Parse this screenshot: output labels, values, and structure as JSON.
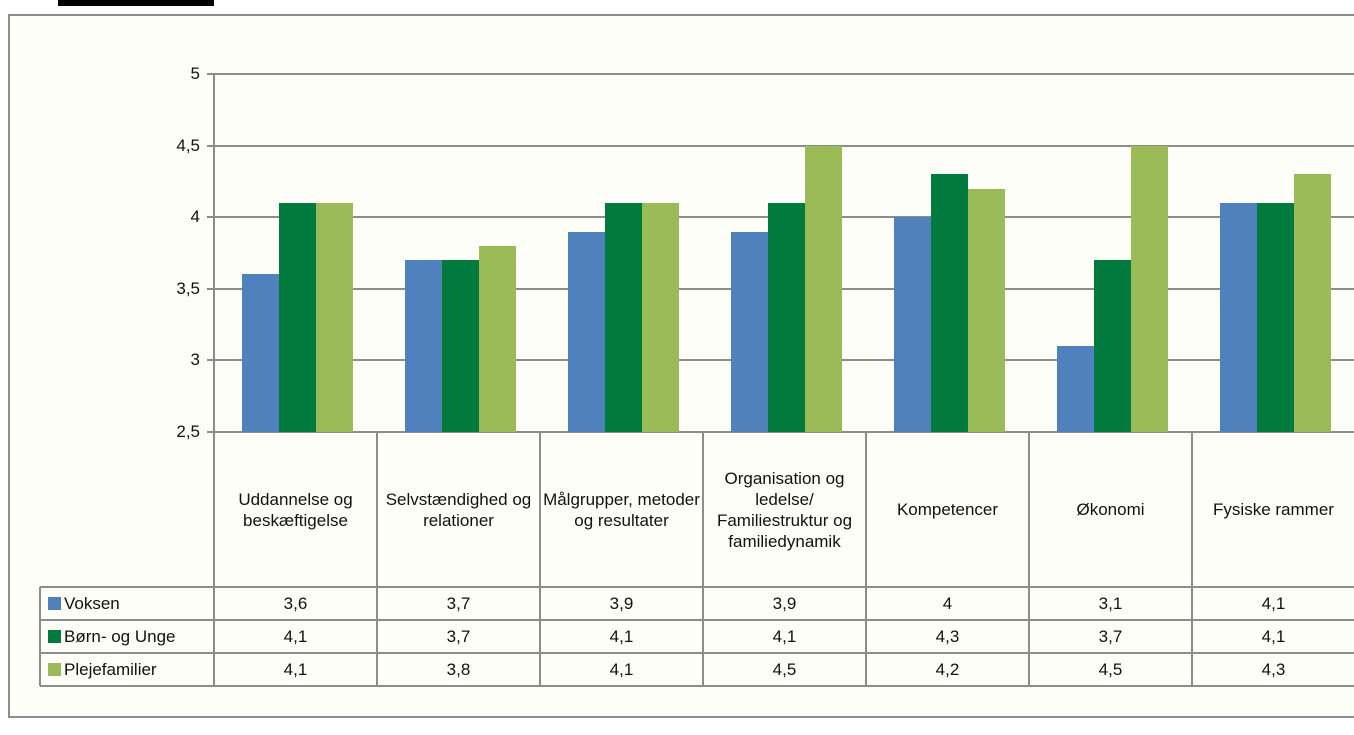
{
  "chart_data": {
    "type": "bar",
    "categories": [
      "Uddannelse og beskæftigelse",
      "Selvstændighed og relationer",
      "Målgrupper, metoder og resultater",
      "Organisation og ledelse/ Familiestruktur og familiedynamik",
      "Kompetencer",
      "Økonomi",
      "Fysiske rammer"
    ],
    "series": [
      {
        "name": "Voksen",
        "color": "#4f81bd",
        "values": [
          3.6,
          3.7,
          3.9,
          3.9,
          4,
          3.1,
          4.1
        ],
        "value_labels": [
          "3,6",
          "3,7",
          "3,9",
          "3,9",
          "4",
          "3,1",
          "4,1"
        ]
      },
      {
        "name": "Børn- og Unge",
        "color": "#007a3d",
        "values": [
          4.1,
          3.7,
          4.1,
          4.1,
          4.3,
          3.7,
          4.1
        ],
        "value_labels": [
          "4,1",
          "3,7",
          "4,1",
          "4,1",
          "4,3",
          "3,7",
          "4,1"
        ]
      },
      {
        "name": "Plejefamilier",
        "color": "#9bbb59",
        "values": [
          4.1,
          3.8,
          4.1,
          4.5,
          4.2,
          4.5,
          4.3
        ],
        "value_labels": [
          "4,1",
          "3,8",
          "4,1",
          "4,5",
          "4,2",
          "4,5",
          "4,3"
        ]
      }
    ],
    "ylim": [
      2.5,
      5
    ],
    "yticks": [
      {
        "value": 2.5,
        "label": "2,5"
      },
      3,
      {
        "value": 3.5,
        "label": "3,5"
      },
      4,
      {
        "value": 4.5,
        "label": "4,5"
      },
      5
    ],
    "grid": true,
    "data_table": true
  }
}
